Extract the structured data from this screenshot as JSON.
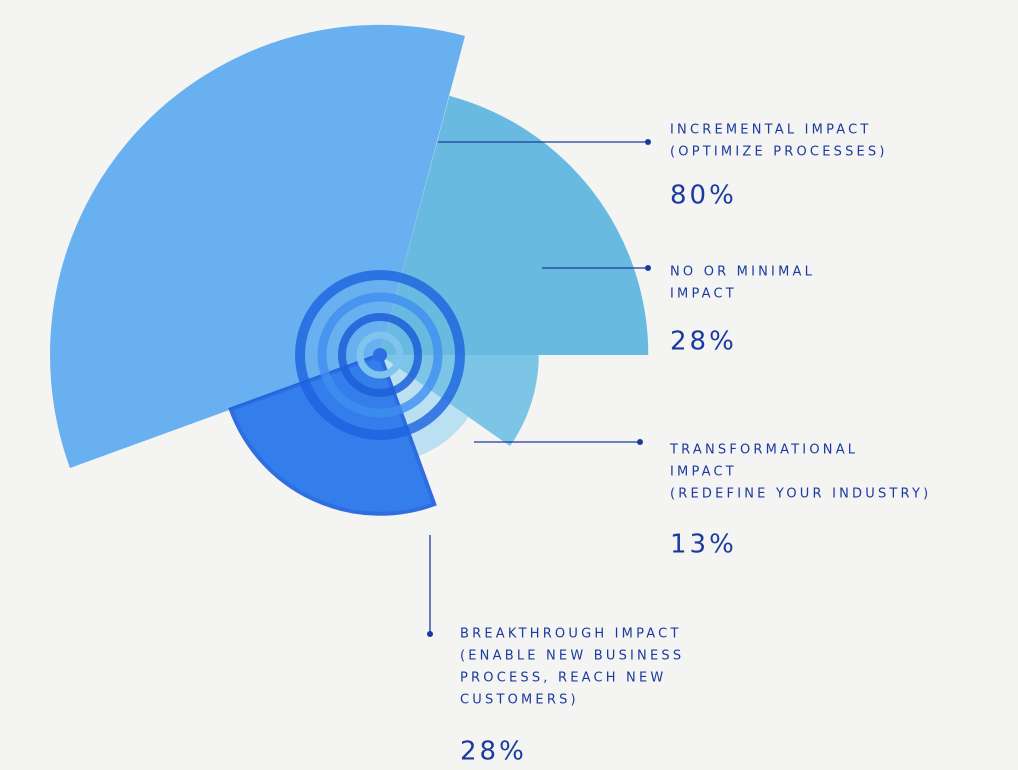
{
  "chart_data": {
    "type": "polar-area",
    "categories": [
      [
        "INCREMENTAL IMPACT",
        "(OPTIMIZE PROCESSES)"
      ],
      [
        "NO OR MINIMAL",
        "IMPACT"
      ],
      [
        "TRANSFORMATIONAL",
        "IMPACT",
        "(REDEFINE YOUR INDUSTRY)"
      ],
      [
        "BREAKTHROUGH IMPACT",
        "(ENABLE NEW BUSINESS",
        "PROCESS, REACH NEW",
        "CUSTOMERS)"
      ]
    ],
    "values": [
      80,
      28,
      13,
      28
    ],
    "value_labels": [
      "80%",
      "28%",
      "13%",
      "28%"
    ],
    "colors": [
      "#5ab4de",
      "#6fc0e6",
      "#b5def2",
      "#1f72ea"
    ]
  }
}
